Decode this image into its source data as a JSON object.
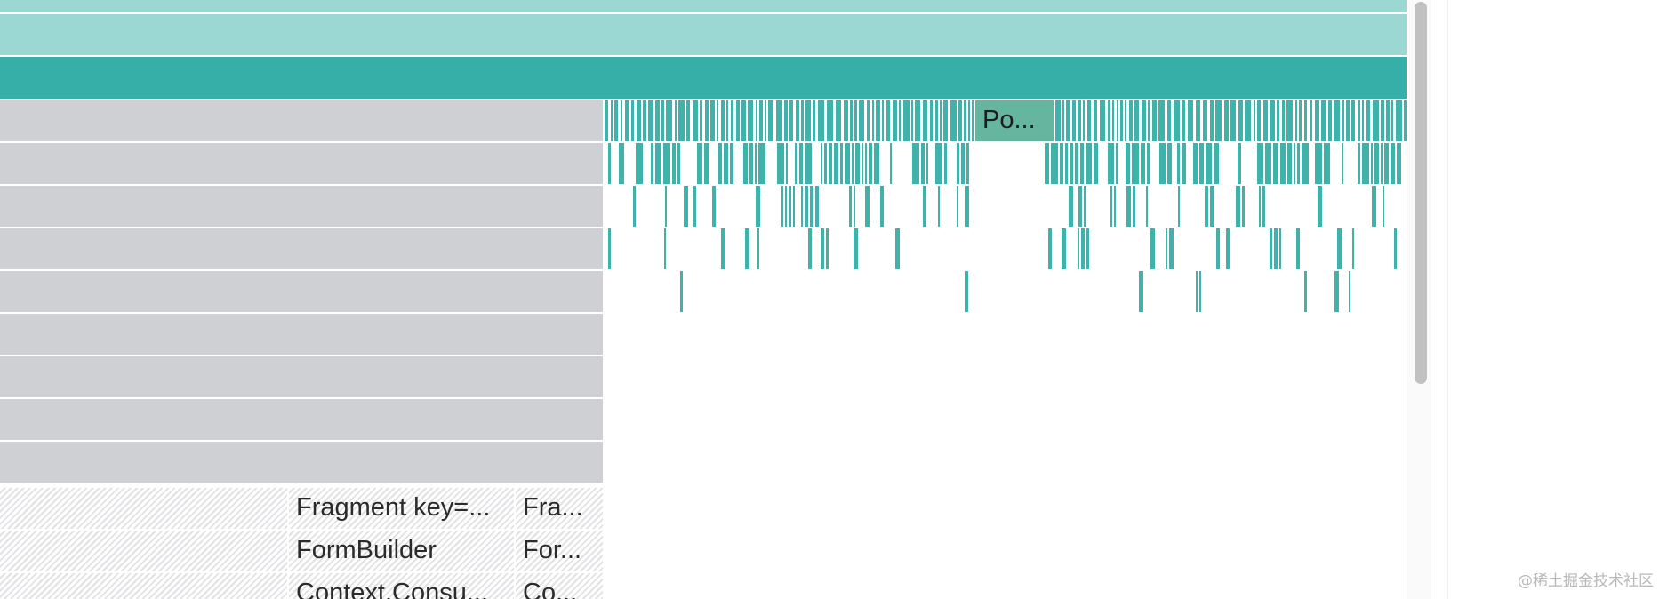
{
  "colors": {
    "light_teal": "#9cd8d3",
    "teal": "#37afa9",
    "bar_teal": "#3fb2aa",
    "highlight_teal": "#66b59f",
    "gray": "#cfd0d3"
  },
  "flamegraph": {
    "highlight_label": "Po...",
    "rows": [
      {
        "label": "Fragment key=...",
        "sub_label": "Fra..."
      },
      {
        "label": "FormBuilder",
        "sub_label": "For..."
      },
      {
        "label": "Context.Consu...",
        "sub_label": "Co..."
      }
    ]
  },
  "watermark": "@稀土掘金技术社区"
}
